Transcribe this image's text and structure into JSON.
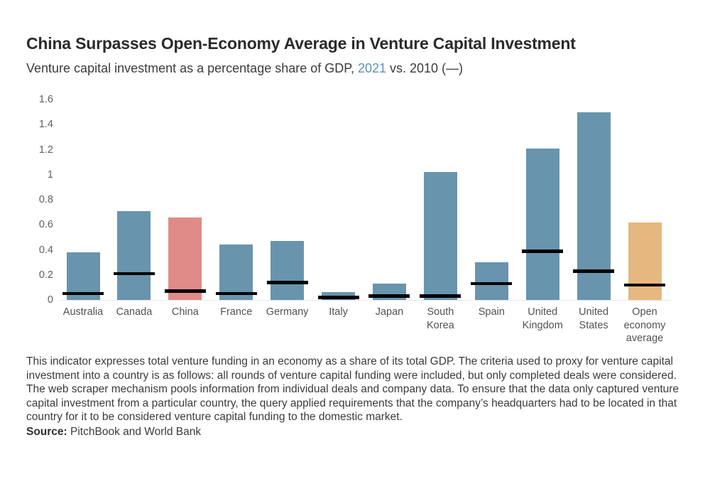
{
  "header": {
    "title": "China Surpasses Open-Economy Average in Venture Capital Investment",
    "subtitle_prefix": "Venture capital investment as a percentage share of GDP, ",
    "subtitle_highlight": "2021",
    "subtitle_suffix": " vs. 2010 (—)"
  },
  "chart_data": {
    "type": "bar",
    "title": "China Surpasses Open-Economy Average in Venture Capital Investment",
    "subtitle": "Venture capital investment as a percentage share of GDP, 2021 vs. 2010 (—)",
    "xlabel": "",
    "ylabel": "",
    "ylim": [
      0,
      1.6
    ],
    "yticks": [
      "0",
      "0.2",
      "0.4",
      "0.6",
      "0.8",
      "1",
      "1.2",
      "1.4",
      "1.6"
    ],
    "grid": "off",
    "legend_position": "in-subtitle",
    "legend_entries": [
      {
        "label": "2021",
        "type": "bar"
      },
      {
        "label": "2010",
        "type": "marker-line"
      }
    ],
    "categories": [
      "Australia",
      "Canada",
      "China",
      "France",
      "Germany",
      "Italy",
      "Japan",
      "South Korea",
      "Spain",
      "United Kingdom",
      "United States",
      "Open economy average"
    ],
    "label_lines": [
      [
        "Australia"
      ],
      [
        "Canada"
      ],
      [
        "China"
      ],
      [
        "France"
      ],
      [
        "Germany"
      ],
      [
        "Italy"
      ],
      [
        "Japan"
      ],
      [
        "South",
        "Korea"
      ],
      [
        "Spain"
      ],
      [
        "United",
        "Kingdom"
      ],
      [
        "United",
        "States"
      ],
      [
        "Open",
        "economy",
        "average"
      ]
    ],
    "series": [
      {
        "name": "2021",
        "values": [
          0.38,
          0.71,
          0.66,
          0.44,
          0.47,
          0.06,
          0.13,
          1.02,
          0.3,
          1.21,
          1.5,
          0.62
        ]
      },
      {
        "name": "2010",
        "values": [
          0.05,
          0.21,
          0.07,
          0.05,
          0.14,
          0.02,
          0.03,
          0.03,
          0.13,
          0.39,
          0.23,
          0.12
        ]
      }
    ],
    "bar_colors": [
      "#6895ad",
      "#6895ad",
      "#e08b88",
      "#6895ad",
      "#6895ad",
      "#6895ad",
      "#6895ad",
      "#6895ad",
      "#6895ad",
      "#6895ad",
      "#6895ad",
      "#e5b87f"
    ],
    "colors": {
      "bar_default": "#6895ad",
      "bar_china": "#e08b88",
      "bar_open_economy": "#e5b87f",
      "marker_2010": "#000000",
      "highlight_text": "#5b92b5"
    }
  },
  "footer": {
    "note": "This indicator expresses total venture funding in an economy as a share of its total GDP. The criteria used to proxy for venture capital investment into a country is as follows: all rounds of venture capital funding were included, but only completed deals were considered. The web scraper mechanism pools information from individual deals and company data. To ensure that the data only captured venture capital investment from a particular country, the query applied requirements that the company’s headquarters had to be located in that country for it to be considered venture capital funding to the domestic market.",
    "source_label": "Source:",
    "source_text": " PitchBook and World Bank"
  }
}
